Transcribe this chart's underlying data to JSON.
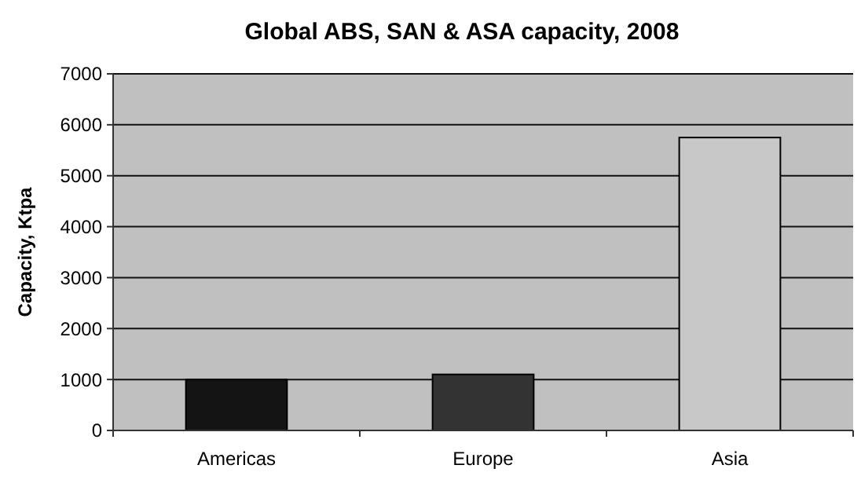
{
  "chart_data": {
    "type": "bar",
    "title": "Global ABS, SAN & ASA capacity, 2008",
    "ylabel": "Capacity, Ktpa",
    "categories": [
      "Americas",
      "Europe",
      "Asia"
    ],
    "values": [
      1000,
      1100,
      5750
    ],
    "colors": [
      "#141414",
      "#333333",
      "#c8c8c8"
    ],
    "ylim": [
      0,
      7000
    ],
    "yticks": [
      0,
      1000,
      2000,
      3000,
      4000,
      5000,
      6000,
      7000
    ],
    "grid": "y"
  }
}
